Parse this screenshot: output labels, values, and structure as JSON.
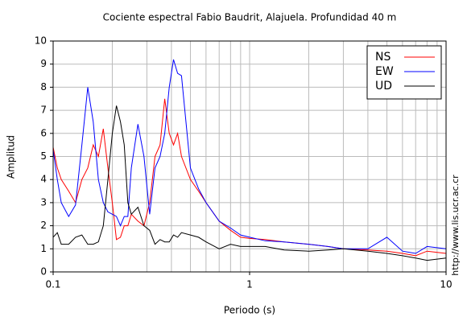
{
  "chart_data": {
    "type": "line",
    "title": "Cociente espectral Fabio Baudrit, Alajuela. Profundidad 40 m",
    "x_label": "Periodo (s)",
    "y_label": "Amplitud",
    "annotation": "http://www.lis.ucr.ac.cr",
    "x": [
      0.1,
      0.105,
      0.11,
      0.12,
      0.13,
      0.14,
      0.15,
      0.16,
      0.17,
      0.18,
      0.19,
      0.2,
      0.21,
      0.22,
      0.23,
      0.24,
      0.25,
      0.27,
      0.29,
      0.31,
      0.33,
      0.35,
      0.37,
      0.39,
      0.41,
      0.43,
      0.45,
      0.5,
      0.55,
      0.6,
      0.7,
      0.8,
      0.9,
      1,
      1.2,
      1.5,
      2,
      2.5,
      3,
      4,
      5,
      6,
      7,
      8,
      10
    ],
    "series": [
      {
        "name": "NS",
        "color": "#ff0000",
        "values": [
          5.4,
          4.5,
          4,
          3.5,
          3,
          4,
          4.5,
          5.5,
          5,
          6.2,
          4.5,
          3,
          1.4,
          1.5,
          2,
          2,
          2.5,
          2.2,
          2,
          3,
          5,
          5.5,
          7.5,
          6,
          5.5,
          6,
          5,
          4,
          3.5,
          3,
          2.2,
          1.8,
          1.5,
          1.45,
          1.4,
          1.3,
          1.2,
          1.1,
          1,
          0.95,
          0.9,
          0.8,
          0.7,
          0.9,
          0.8
        ]
      },
      {
        "name": "EW",
        "color": "#0000ff",
        "values": [
          5.3,
          4,
          3,
          2.4,
          2.9,
          5.5,
          8,
          6.5,
          4,
          3,
          2.6,
          2.5,
          2.4,
          2,
          2.4,
          2.4,
          4.5,
          6.4,
          5,
          2.5,
          4.5,
          5,
          6,
          8,
          9.2,
          8.6,
          8.5,
          4.5,
          3.6,
          3,
          2.2,
          1.9,
          1.6,
          1.5,
          1.35,
          1.3,
          1.2,
          1.1,
          1,
          1,
          1.5,
          0.9,
          0.8,
          1.1,
          1
        ]
      },
      {
        "name": "UD",
        "color": "#000000",
        "values": [
          1.5,
          1.7,
          1.2,
          1.2,
          1.5,
          1.6,
          1.2,
          1.2,
          1.3,
          2,
          4,
          6,
          7.2,
          6.5,
          5.5,
          3,
          2.5,
          2.8,
          2,
          1.8,
          1.2,
          1.4,
          1.3,
          1.3,
          1.6,
          1.5,
          1.7,
          1.6,
          1.5,
          1.3,
          1,
          1.2,
          1.1,
          1.1,
          1.1,
          0.95,
          0.9,
          0.95,
          1,
          0.9,
          0.8,
          0.7,
          0.6,
          0.5,
          0.6
        ]
      }
    ],
    "xlim": [
      0.1,
      10
    ],
    "xticks": [
      0.1,
      1,
      10
    ],
    "xscale": "log",
    "ylim": [
      0,
      10
    ],
    "yticks": [
      0,
      1,
      2,
      3,
      4,
      5,
      6,
      7,
      8,
      9,
      10
    ],
    "grid": true,
    "legend": "top right"
  }
}
